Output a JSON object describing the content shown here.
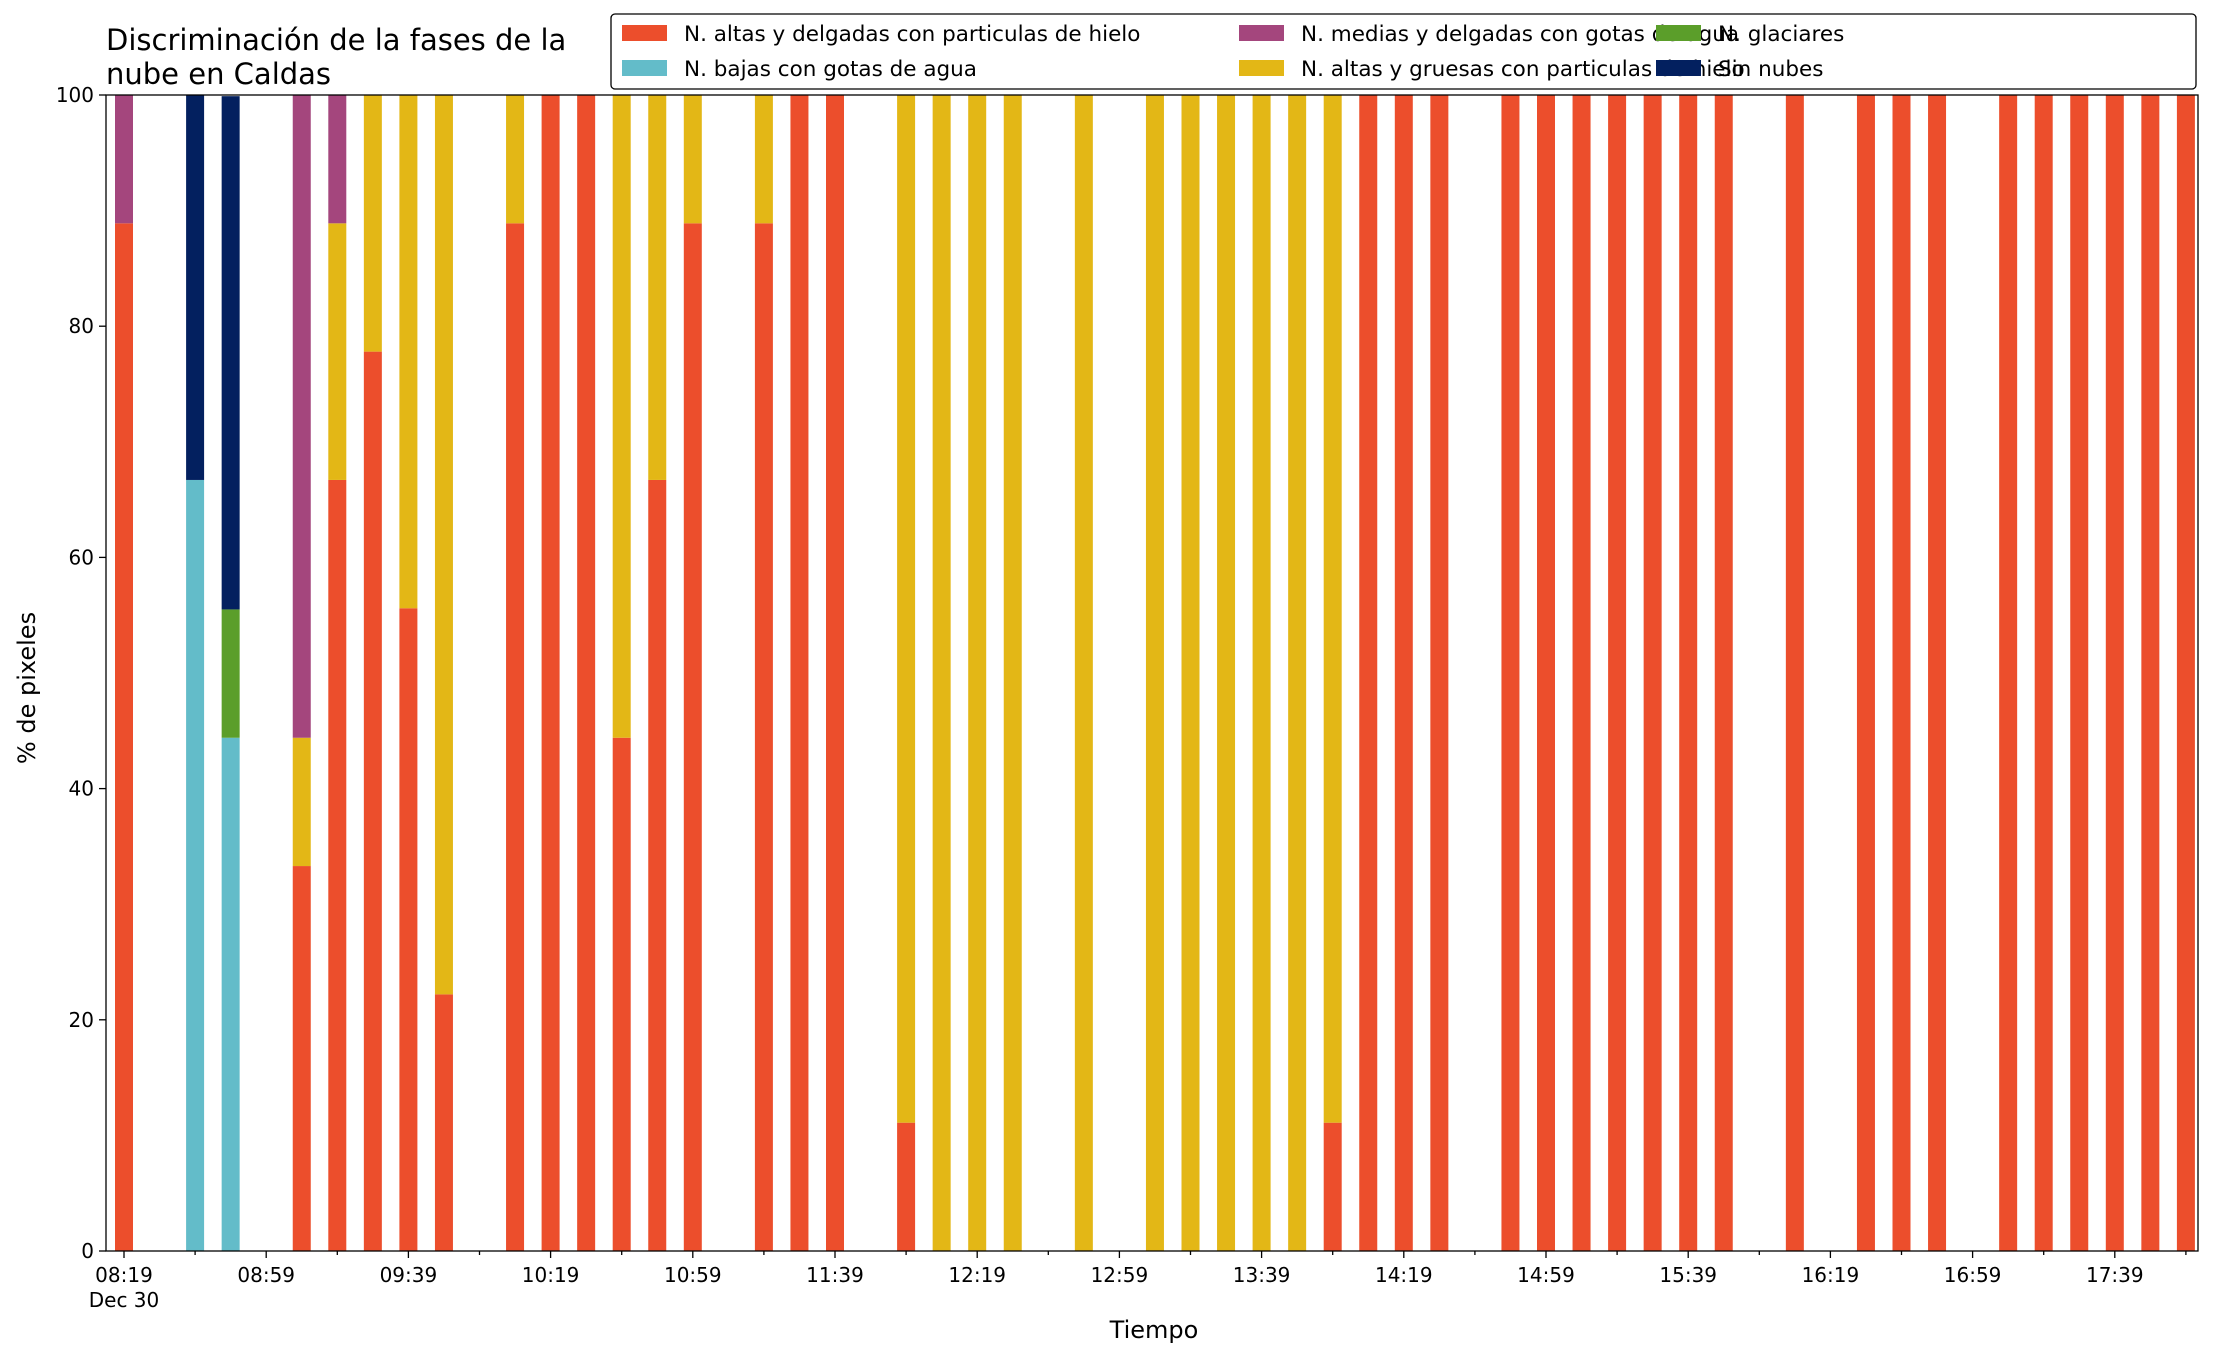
{
  "chart_data": {
    "type": "bar",
    "stacked": true,
    "title_lines": [
      "Discriminación de la fases de la",
      "nube en Caldas"
    ],
    "xlabel": "Tiempo",
    "ylabel": "% de pixeles",
    "ylim": [
      0,
      100
    ],
    "y_ticks": [
      0,
      20,
      40,
      60,
      80,
      100
    ],
    "x_tick_labels": [
      "08:19",
      "08:59",
      "09:39",
      "10:19",
      "10:59",
      "11:39",
      "12:19",
      "12:59",
      "13:39",
      "14:19",
      "14:59",
      "15:39",
      "16:19",
      "16:59",
      "17:39"
    ],
    "x_date_label": "Dec 30",
    "legend_position": "top-right",
    "legend": [
      "N. altas y delgadas con particulas de hielo",
      "N. bajas con gotas de agua",
      "N. medias y delgadas con gotas de agua",
      "N. altas y gruesas con particulas de hielo",
      "N. glaciares",
      "Sin nubes"
    ],
    "x": [
      "08:19",
      "08:24",
      "08:29",
      "08:34",
      "08:39",
      "08:44",
      "08:49",
      "08:54",
      "08:59",
      "09:04",
      "09:09",
      "09:14",
      "09:19",
      "09:24",
      "09:29",
      "09:34",
      "09:39",
      "09:44",
      "09:49",
      "09:54",
      "09:59",
      "10:04",
      "10:09",
      "10:14",
      "10:19",
      "10:24",
      "10:29",
      "10:34",
      "10:39",
      "10:44",
      "10:49",
      "10:54",
      "10:59",
      "11:04",
      "11:09",
      "11:14",
      "11:19",
      "11:24",
      "11:29",
      "11:34",
      "11:39",
      "11:44",
      "11:49",
      "11:54",
      "11:59",
      "12:04",
      "12:09",
      "12:14",
      "12:19",
      "12:24",
      "12:29",
      "12:34",
      "12:39",
      "12:44",
      "12:49",
      "12:54",
      "12:59",
      "13:04",
      "13:09",
      "13:14",
      "13:19",
      "13:24",
      "13:29",
      "13:34",
      "13:39",
      "13:44",
      "13:49",
      "13:54",
      "13:59",
      "14:04",
      "14:09",
      "14:14",
      "14:19",
      "14:24",
      "14:29",
      "14:34",
      "14:39",
      "14:44",
      "14:49",
      "14:54",
      "14:59",
      "15:04",
      "15:09",
      "15:14",
      "15:19",
      "15:24",
      "15:29",
      "15:34",
      "15:39",
      "15:44",
      "15:49",
      "15:54",
      "15:59",
      "16:04",
      "16:09",
      "16:14",
      "16:19",
      "16:24",
      "16:29",
      "16:34",
      "16:39",
      "16:44",
      "16:49",
      "16:54",
      "16:59",
      "17:04",
      "17:09",
      "17:14",
      "17:19",
      "17:24",
      "17:29",
      "17:34",
      "17:39",
      "17:44",
      "17:49",
      "17:54",
      "17:59"
    ],
    "series": [
      {
        "name": "N. altas y delgadas con particulas de hielo",
        "color": "#ec4e2c",
        "values": [
          [
            0,
            88.9
          ],
          [
            5,
            33.3
          ],
          [
            6,
            66.7
          ],
          [
            7,
            77.8
          ],
          [
            8,
            55.6
          ],
          [
            9,
            22.2
          ],
          [
            11,
            88.9
          ],
          [
            12,
            100
          ],
          [
            13,
            100
          ],
          [
            14,
            44.4
          ],
          [
            15,
            66.7
          ],
          [
            16,
            88.9
          ],
          [
            18,
            88.9
          ],
          [
            19,
            100
          ],
          [
            20,
            100
          ],
          [
            22,
            11.1
          ],
          [
            34,
            11.1
          ],
          [
            35,
            100
          ],
          [
            36,
            100
          ],
          [
            37,
            100
          ],
          [
            39,
            100
          ],
          [
            40,
            100
          ],
          [
            41,
            100
          ],
          [
            42,
            100
          ],
          [
            43,
            100
          ],
          [
            44,
            100
          ],
          [
            45,
            100
          ],
          [
            47,
            100
          ],
          [
            49,
            100
          ],
          [
            50,
            100
          ],
          [
            51,
            100
          ],
          [
            53,
            100
          ],
          [
            54,
            100
          ],
          [
            55,
            100
          ],
          [
            56,
            100
          ],
          [
            57,
            100
          ],
          [
            58,
            100
          ]
        ]
      },
      {
        "name": "N. altas y gruesas con particulas de hielo",
        "color": "#e3b716",
        "values": [
          [
            5,
            11.1
          ],
          [
            6,
            22.2
          ],
          [
            7,
            22.2
          ],
          [
            8,
            44.4
          ],
          [
            9,
            77.8
          ],
          [
            11,
            11.1
          ],
          [
            14,
            55.6
          ],
          [
            15,
            33.3
          ],
          [
            16,
            11.1
          ],
          [
            18,
            11.1
          ],
          [
            22,
            88.9
          ],
          [
            23,
            100
          ],
          [
            24,
            100
          ],
          [
            25,
            100
          ],
          [
            27,
            100
          ],
          [
            29,
            100
          ],
          [
            30,
            100
          ],
          [
            31,
            100
          ],
          [
            32,
            100
          ],
          [
            33,
            100
          ],
          [
            34,
            88.9
          ]
        ]
      },
      {
        "name": "N. bajas con gotas de agua",
        "color": "#63bcc9",
        "values": [
          [
            2,
            66.7
          ],
          [
            3,
            44.4
          ]
        ]
      },
      {
        "name": "N. glaciares",
        "color": "#5b9e2a",
        "values": [
          [
            3,
            11.1
          ]
        ]
      },
      {
        "name": "N. medias y delgadas con gotas de agua",
        "color": "#a4467d",
        "values": [
          [
            0,
            11.1
          ],
          [
            5,
            55.6
          ],
          [
            6,
            11.1
          ]
        ]
      },
      {
        "name": "Sin nubes",
        "color": "#03205f",
        "values": [
          [
            2,
            33.3
          ],
          [
            3,
            44.4
          ]
        ]
      }
    ],
    "bar_slot_note": "values given as [slot_index, percent]; slot_index counts 10-minute-spaced bar positions starting at 08:19"
  }
}
